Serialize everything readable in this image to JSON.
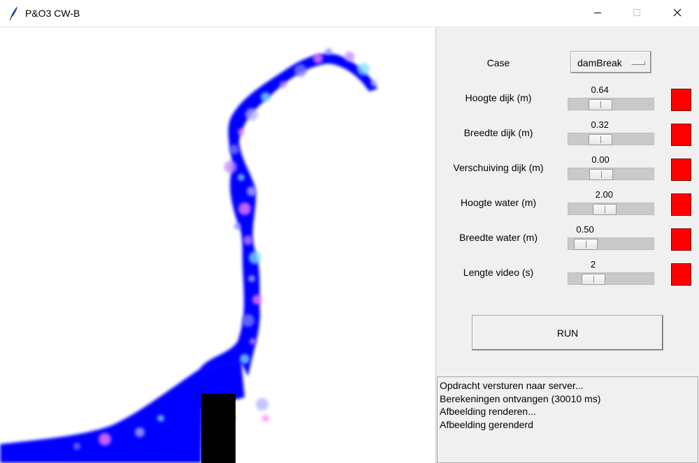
{
  "window": {
    "title": "P&O3 CW-B",
    "app_icon": "feather-icon",
    "controls": [
      "minimize-icon",
      "maximize-icon",
      "close-icon"
    ]
  },
  "controls": {
    "case_label": "Case",
    "case_value": "damBreak",
    "sliders": [
      {
        "label": "Hoogte dijk  (m)",
        "value": "0.64",
        "fraction": 0.32,
        "color": "#ff0000"
      },
      {
        "label": "Breedte dijk  (m)",
        "value": "0.32",
        "fraction": 0.32,
        "color": "#ff0000"
      },
      {
        "label": "Verschuiving dijk  (m)",
        "value": "0.00",
        "fraction": 0.33,
        "color": "#ff0000"
      },
      {
        "label": "Hoogte water  (m)",
        "value": "2.00",
        "fraction": 0.39,
        "color": "#ff0000"
      },
      {
        "label": "Breedte water  (m)",
        "value": "0.50",
        "fraction": 0.08,
        "color": "#ff0000"
      },
      {
        "label": "Lengte video  (s)",
        "value": "2",
        "fraction": 0.21,
        "color": "#ff0000"
      }
    ],
    "run_label": "RUN"
  },
  "log": [
    "Opdracht versturen naar server...",
    "Berekeningen ontvangen (30010 ms)",
    "Afbeelding renderen...",
    "Afbeelding gerenderd"
  ],
  "simulation": {
    "water_color": "#0000ff",
    "dike_color": "#000000"
  }
}
